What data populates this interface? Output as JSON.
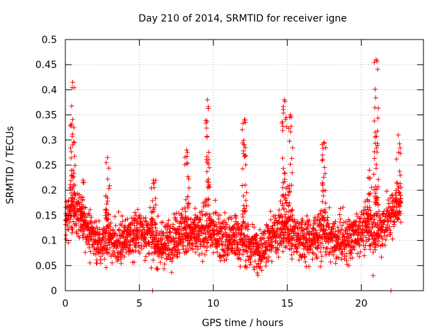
{
  "chart_data": {
    "type": "scatter",
    "title": "Day 210 of 2014, SRMTID for receiver igne",
    "xlabel": "GPS time / hours",
    "ylabel": "SRMTID / TECUs",
    "xlim": [
      0,
      24.2
    ],
    "ylim": [
      0,
      0.5
    ],
    "xticks": [
      0,
      5,
      10,
      15,
      20
    ],
    "xtick_labels": [
      "0",
      "5",
      "10",
      "15",
      "20"
    ],
    "yticks": [
      0,
      0.05,
      0.1,
      0.15,
      0.2,
      0.25,
      0.3,
      0.35,
      0.4,
      0.45,
      0.5
    ],
    "ytick_labels": [
      "0",
      "0.05",
      "0.1",
      "0.15",
      "0.2",
      "0.25",
      "0.3",
      "0.35",
      "0.4",
      "0.45",
      "0.5"
    ],
    "grid": true,
    "marker": "+",
    "color": "#ff0000",
    "series": [
      {
        "name": "SRMTID",
        "profile": {
          "hours": [
            0,
            0.5,
            1,
            1.5,
            2,
            2.5,
            3,
            3.5,
            4,
            4.5,
            5,
            5.5,
            6,
            6.5,
            7,
            7.5,
            8,
            8.5,
            9,
            9.5,
            10,
            10.5,
            11,
            11.5,
            12,
            12.5,
            13,
            13.5,
            14,
            14.5,
            15,
            15.5,
            16,
            16.5,
            17,
            17.5,
            18,
            18.5,
            19,
            19.5,
            20,
            20.5,
            21,
            21.5,
            22,
            22.5
          ],
          "median": [
            0.14,
            0.17,
            0.15,
            0.12,
            0.1,
            0.09,
            0.1,
            0.09,
            0.1,
            0.11,
            0.12,
            0.11,
            0.1,
            0.09,
            0.1,
            0.11,
            0.12,
            0.11,
            0.11,
            0.12,
            0.12,
            0.11,
            0.1,
            0.11,
            0.1,
            0.09,
            0.08,
            0.09,
            0.11,
            0.12,
            0.12,
            0.11,
            0.1,
            0.1,
            0.11,
            0.12,
            0.1,
            0.1,
            0.1,
            0.11,
            0.12,
            0.12,
            0.12,
            0.13,
            0.15,
            0.17
          ]
        },
        "spikes": [
          {
            "x": 0.5,
            "y_min": 0.18,
            "y_max": 0.415
          },
          {
            "x": 1.2,
            "y_min": 0.15,
            "y_max": 0.22
          },
          {
            "x": 2.85,
            "y_min": 0.14,
            "y_max": 0.265
          },
          {
            "x": 5.95,
            "y_min": 0.13,
            "y_max": 0.22
          },
          {
            "x": 8.2,
            "y_min": 0.14,
            "y_max": 0.28
          },
          {
            "x": 9.6,
            "y_min": 0.17,
            "y_max": 0.38
          },
          {
            "x": 12.1,
            "y_min": 0.15,
            "y_max": 0.34
          },
          {
            "x": 14.8,
            "y_min": 0.15,
            "y_max": 0.38
          },
          {
            "x": 15.2,
            "y_min": 0.14,
            "y_max": 0.35
          },
          {
            "x": 17.5,
            "y_min": 0.14,
            "y_max": 0.295
          },
          {
            "x": 20.55,
            "y_min": 0.14,
            "y_max": 0.24
          },
          {
            "x": 21.0,
            "y_min": 0.17,
            "y_max": 0.46
          },
          {
            "x": 22.5,
            "y_min": 0.17,
            "y_max": 0.31
          }
        ],
        "outliers": [
          {
            "x": 5.9,
            "y": 0.0
          },
          {
            "x": 22.0,
            "y": 0.0
          },
          {
            "x": 20.8,
            "y": 0.03
          }
        ]
      }
    ]
  }
}
